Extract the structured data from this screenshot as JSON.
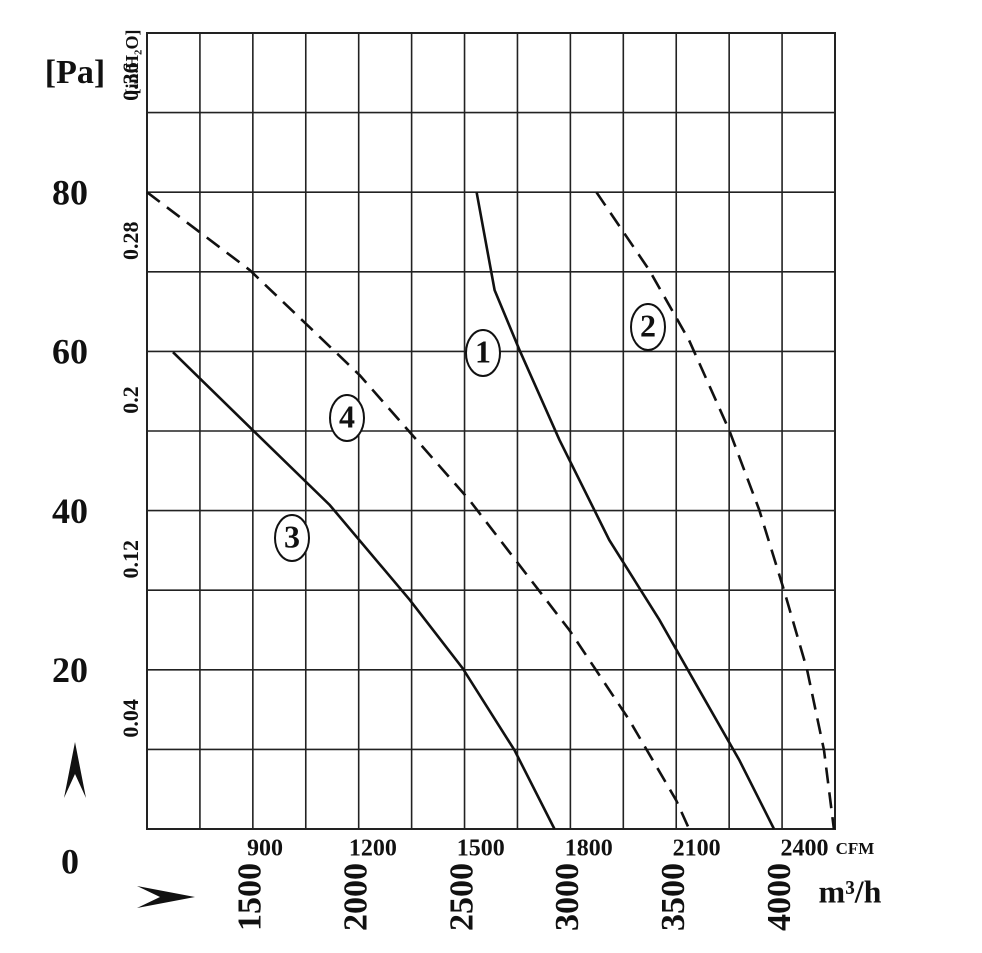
{
  "chart_data": {
    "type": "line",
    "y_unit_label": "[Pa]",
    "y2_unit_label": "[in.H₂O]",
    "x_unit_label": "m³/h",
    "x2_unit_label": "CFM",
    "xlim": [
      1000,
      4250
    ],
    "xticks": [
      1500,
      2000,
      2500,
      3000,
      3500,
      4000
    ],
    "x_minor_ticks": [
      1250,
      1750,
      2250,
      2750,
      3250,
      3750
    ],
    "x2lim": [
      588.6,
      2501.5
    ],
    "x2ticks": [
      900,
      1200,
      1500,
      1800,
      2100,
      2400
    ],
    "ylim": [
      0,
      100
    ],
    "yticks": [
      0,
      20,
      40,
      60,
      80
    ],
    "y2lim": [
      0,
      0.4
    ],
    "y2ticks": [
      0.04,
      0.12,
      0.2,
      0.28,
      0.36
    ],
    "grid": true,
    "series": [
      {
        "name": "1",
        "color": "#111111",
        "dash": "solid",
        "x": [
          2557,
          2642,
          2759,
          2948,
          3184,
          3420,
          3608,
          3797,
          3962
        ],
        "values": [
          80,
          67.7,
          60.2,
          48.9,
          36.3,
          26.3,
          17.5,
          8.7,
          0
        ]
      },
      {
        "name": "2",
        "color": "#111111",
        "dash": "dashed",
        "x": [
          3123,
          3373,
          3561,
          3750,
          3892,
          4009,
          4118,
          4198,
          4245
        ],
        "values": [
          80,
          70.2,
          61.4,
          50.1,
          40.1,
          30,
          20,
          9.9,
          0
        ]
      },
      {
        "name": "3",
        "color": "#111111",
        "dash": "solid",
        "x": [
          1123,
          1500,
          1863,
          2241,
          2491,
          2736,
          2925
        ],
        "values": [
          59.9,
          50.1,
          40.7,
          28.8,
          20.2,
          9.9,
          0
        ]
      },
      {
        "name": "4",
        "color": "#111111",
        "dash": "dashed",
        "x": [
          1000,
          1486,
          2005,
          2524,
          2995,
          3278,
          3500,
          3561
        ],
        "values": [
          80,
          70.2,
          57,
          41.3,
          25,
          13.7,
          3.6,
          0
        ]
      }
    ]
  }
}
